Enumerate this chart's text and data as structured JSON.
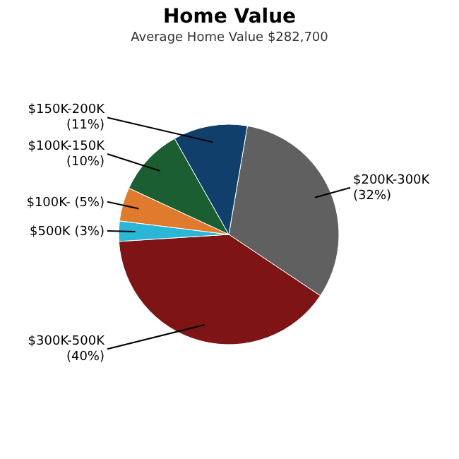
{
  "chart_data": {
    "type": "pie",
    "title": "Home Value",
    "subtitle": "Average Home Value  $282,700",
    "categories": [
      "$200K-300K",
      "$300K-500K",
      "$500K",
      "$100K-",
      "$100K-150K",
      "$150K-200K"
    ],
    "values": [
      32,
      40,
      3,
      5,
      10,
      11
    ],
    "value_labels": [
      "(32%)",
      "(40%)",
      "(3%)",
      "(5%)",
      "(10%)",
      "(11%)"
    ],
    "colors": [
      "#606060",
      "#7e1416",
      "#2ab6d6",
      "#e07a2c",
      "#1a5e32",
      "#0f3f6a"
    ],
    "legend": false
  }
}
